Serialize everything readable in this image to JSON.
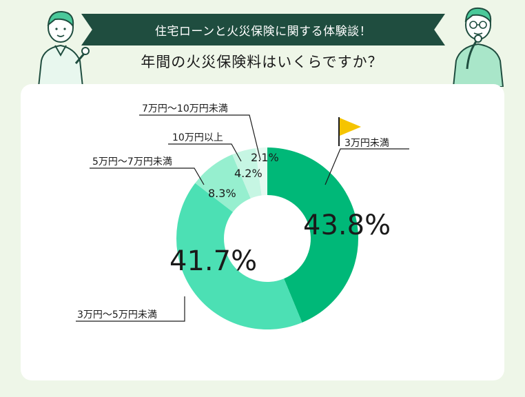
{
  "header": {
    "banner_text": "住宅ローンと火災保険に関する体験談！",
    "question": "年間の火災保険料はいくらですか？"
  },
  "colors": {
    "background": "#eef6e8",
    "banner": "#1f4d3f",
    "flag": "#f5c400"
  },
  "chart_data": {
    "type": "pie",
    "variant": "donut",
    "start": "12 o'clock, clockwise",
    "categories": [
      "3万円未満",
      "3万円〜5万円未満",
      "5万円〜7万円未満",
      "10万円以上",
      "7万円〜10万円未満"
    ],
    "values": [
      43.8,
      41.7,
      8.3,
      4.2,
      2.1
    ],
    "labels": [
      "43.8%",
      "41.7%",
      "8.3%",
      "4.2%",
      "2.1%"
    ],
    "colors": [
      "#00b878",
      "#4ce0b4",
      "#96efcf",
      "#c6f6e3",
      "#e5faf1"
    ],
    "highlight": "3万円未満"
  }
}
